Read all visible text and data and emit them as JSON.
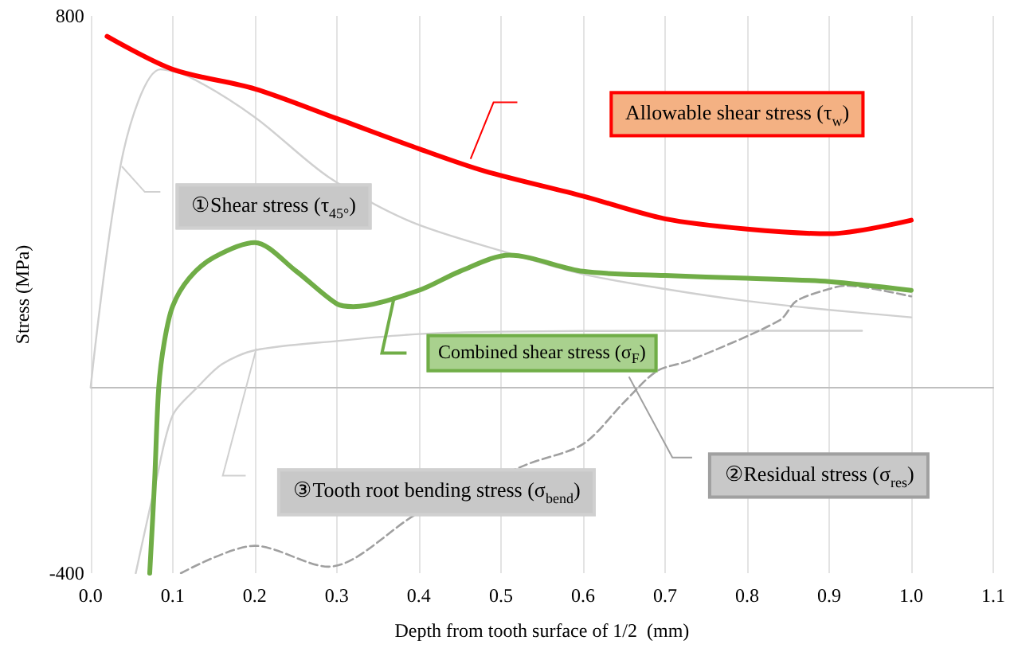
{
  "chart_data": {
    "type": "line",
    "xlabel": "Depth from tooth surface of 1/2  (mm)",
    "ylabel": "Stress (MPa)",
    "xlim": [
      0,
      1.1
    ],
    "ylim": [
      -400,
      800
    ],
    "xticks": [
      {
        "value": 0,
        "label": "0.0"
      },
      0.1,
      0.2,
      0.3,
      0.4,
      0.5,
      0.6,
      0.7,
      0.8,
      0.9,
      {
        "value": 1,
        "label": "1.0"
      },
      1.1
    ],
    "yticks": [
      -400,
      800
    ],
    "grid": "x",
    "marker": "none",
    "series": [
      {
        "name": "Allowable shear stress (τ$_{w}$)",
        "color": "#ff0000",
        "line_style": "solid",
        "x": [
          0.02,
          0.1,
          0.2,
          0.3,
          0.4,
          0.48,
          0.6,
          0.7,
          0.8,
          0.9,
          1.0
        ],
        "values": [
          756,
          685,
          643,
          579,
          514,
          466,
          412,
          363,
          341,
          331,
          360
        ]
      },
      {
        "name": "①Shear stress (τ$_{45°}$)",
        "color": "#d0d0d0",
        "line_style": "solid",
        "x": [
          0,
          0.04,
          0.085,
          0.12,
          0.2,
          0.29,
          0.39,
          0.51,
          0.6,
          0.7,
          0.8,
          0.9,
          1.0
        ],
        "values": [
          0,
          508,
          685,
          669,
          582,
          453,
          357,
          289,
          244,
          212,
          186,
          167,
          151
        ]
      },
      {
        "name": "Combined shear stress (σ$_{F}$)",
        "color": "#70ad47",
        "line_style": "solid",
        "x": [
          0.072,
          0.078,
          0.083,
          0.09,
          0.1,
          0.12,
          0.15,
          0.2,
          0.25,
          0.3,
          0.32,
          0.4,
          0.45,
          0.51,
          0.6,
          0.7,
          0.8,
          0.9,
          1.0
        ],
        "values": [
          -400,
          -200,
          0,
          100,
          175,
          235,
          280,
          312,
          251,
          180,
          174,
          209,
          250,
          285,
          250,
          241,
          235,
          228,
          209
        ]
      },
      {
        "name": "③Tooth root bending stress (σ$_{bend}$)",
        "color": "#d0d0d0",
        "line_style": "solid",
        "x": [
          0.055,
          0.08,
          0.1,
          0.13,
          0.16,
          0.2,
          0.3,
          0.4,
          0.5,
          0.7,
          0.94
        ],
        "values": [
          -400,
          -200,
          -60,
          0,
          50,
          80,
          100,
          115,
          120,
          122,
          122
        ]
      },
      {
        "name": "②Residual stress (σ$_{res}$)",
        "color": "#a0a0a0",
        "line_style": "dashed",
        "x": [
          0.11,
          0.2,
          0.29,
          0.4,
          0.53,
          0.6,
          0.65,
          0.69,
          0.73,
          0.84,
          0.86,
          0.9,
          0.92,
          1.0
        ],
        "values": [
          -400,
          -341,
          -386,
          -270,
          -167,
          -122,
          -32,
          35,
          58,
          145,
          186,
          212,
          219,
          196
        ]
      }
    ]
  }
}
